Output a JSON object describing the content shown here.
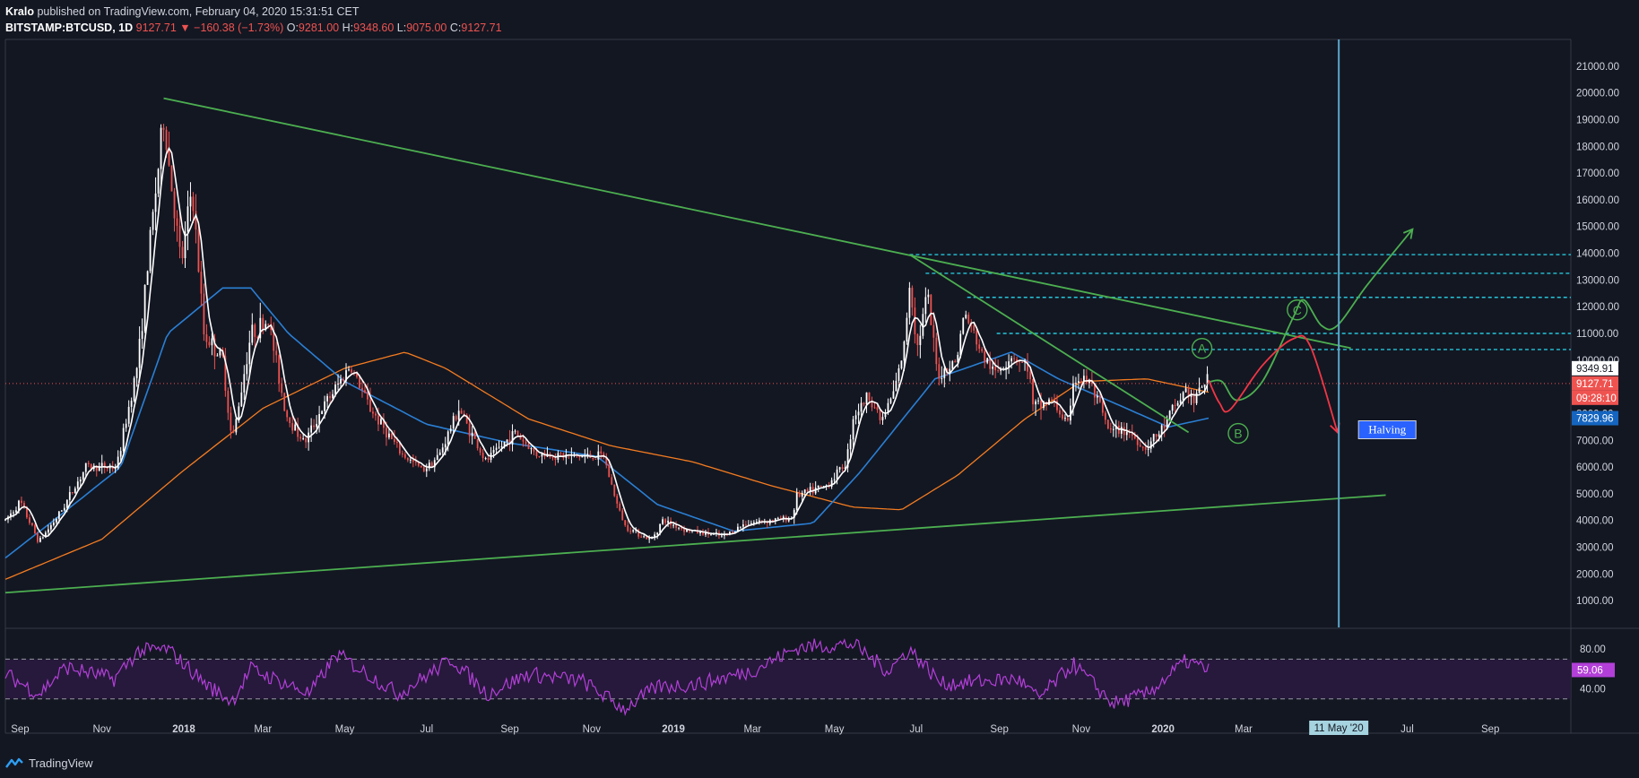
{
  "header": {
    "author": "Kralo",
    "published": "published on TradingView.com, February 04, 2020 15:31:51 CET",
    "symbol": "BITSTAMP:BTCUSD, 1D",
    "last": "9127.71",
    "change_arrow": "▼",
    "change": "−160.38 (−1.73%)",
    "o_label": "O:",
    "o": "9281.00",
    "h_label": "H:",
    "h": "9348.60",
    "l_label": "L:",
    "l": "9075.00",
    "c_label": "C:",
    "c": "9127.71"
  },
  "footer": {
    "brand": "TradingView",
    "icon": "tradingview-logo-icon"
  },
  "colors": {
    "background": "#131722",
    "candle_up": "#ffffff",
    "candle_down": "#ef5350",
    "ma_fast": "#ffffff",
    "ma_medium": "#2a7fd4",
    "ma_slow": "#f57c20",
    "trendline": "#4caf50",
    "level": "#26c6da",
    "rsi": "#b33fd8",
    "halving_line": "#5ba6c8",
    "projection_up": "#4caf50",
    "projection_down": "#f23645"
  },
  "chart_data": {
    "type": "candlestick",
    "title": "",
    "ylim": [
      0,
      22000
    ],
    "ytick_labels": [
      "1000.00",
      "2000.00",
      "3000.00",
      "4000.00",
      "5000.00",
      "6000.00",
      "7000.00",
      "8000.00",
      "9000.00",
      "10000.00",
      "11000.00",
      "12000.00",
      "13000.00",
      "14000.00",
      "15000.00",
      "16000.00",
      "17000.00",
      "18000.00",
      "19000.00",
      "20000.00",
      "21000.00"
    ],
    "xlim": [
      "2017-08-21",
      "2020-10-31"
    ],
    "xtick_labels": [
      {
        "date": "2017-09-01",
        "label": "Sep"
      },
      {
        "date": "2017-11-01",
        "label": "Nov"
      },
      {
        "date": "2018-01-01",
        "label": "2018",
        "bold": true
      },
      {
        "date": "2018-03-01",
        "label": "Mar"
      },
      {
        "date": "2018-05-01",
        "label": "May"
      },
      {
        "date": "2018-07-01",
        "label": "Jul"
      },
      {
        "date": "2018-09-01",
        "label": "Sep"
      },
      {
        "date": "2018-11-01",
        "label": "Nov"
      },
      {
        "date": "2019-01-01",
        "label": "2019",
        "bold": true
      },
      {
        "date": "2019-03-01",
        "label": "Mar"
      },
      {
        "date": "2019-05-01",
        "label": "May"
      },
      {
        "date": "2019-07-01",
        "label": "Jul"
      },
      {
        "date": "2019-09-01",
        "label": "Sep"
      },
      {
        "date": "2019-11-01",
        "label": "Nov"
      },
      {
        "date": "2020-01-01",
        "label": "2020",
        "bold": true
      },
      {
        "date": "2020-03-01",
        "label": "Mar"
      },
      {
        "date": "2020-05-01",
        "label": "May"
      },
      {
        "date": "2020-07-01",
        "label": "Jul"
      },
      {
        "date": "2020-09-01",
        "label": "Sep"
      }
    ],
    "price_anchors": [
      [
        "2017-08-21",
        4000
      ],
      [
        "2017-09-01",
        4700
      ],
      [
        "2017-09-15",
        3200
      ],
      [
        "2017-10-01",
        4300
      ],
      [
        "2017-10-20",
        6000
      ],
      [
        "2017-11-12",
        6000
      ],
      [
        "2017-11-28",
        10000
      ],
      [
        "2017-12-08",
        15000
      ],
      [
        "2017-12-17",
        19000
      ],
      [
        "2017-12-30",
        13500
      ],
      [
        "2018-01-07",
        16500
      ],
      [
        "2018-01-16",
        11000
      ],
      [
        "2018-01-30",
        10000
      ],
      [
        "2018-02-06",
        6900
      ],
      [
        "2018-02-20",
        11000
      ],
      [
        "2018-03-05",
        11500
      ],
      [
        "2018-03-18",
        8000
      ],
      [
        "2018-04-01",
        6900
      ],
      [
        "2018-04-12",
        8000
      ],
      [
        "2018-05-05",
        9800
      ],
      [
        "2018-05-20",
        8200
      ],
      [
        "2018-06-12",
        6500
      ],
      [
        "2018-06-28",
        5900
      ],
      [
        "2018-07-10",
        6400
      ],
      [
        "2018-07-25",
        8200
      ],
      [
        "2018-08-14",
        6200
      ],
      [
        "2018-09-05",
        7300
      ],
      [
        "2018-09-20",
        6500
      ],
      [
        "2018-10-15",
        6400
      ],
      [
        "2018-11-10",
        6400
      ],
      [
        "2018-11-20",
        4600
      ],
      [
        "2018-11-26",
        3800
      ],
      [
        "2018-12-15",
        3250
      ],
      [
        "2018-12-24",
        4000
      ],
      [
        "2019-01-10",
        3650
      ],
      [
        "2019-02-07",
        3400
      ],
      [
        "2019-02-24",
        3900
      ],
      [
        "2019-03-31",
        4100
      ],
      [
        "2019-04-02",
        4900
      ],
      [
        "2019-04-25",
        5300
      ],
      [
        "2019-05-10",
        6200
      ],
      [
        "2019-05-15",
        7900
      ],
      [
        "2019-05-27",
        8700
      ],
      [
        "2019-06-05",
        7700
      ],
      [
        "2019-06-15",
        8900
      ],
      [
        "2019-06-22",
        10500
      ],
      [
        "2019-06-26",
        12900
      ],
      [
        "2019-07-02",
        10500
      ],
      [
        "2019-07-09",
        12500
      ],
      [
        "2019-07-17",
        9400
      ],
      [
        "2019-07-31",
        10000
      ],
      [
        "2019-08-06",
        11800
      ],
      [
        "2019-08-20",
        10100
      ],
      [
        "2019-08-29",
        9500
      ],
      [
        "2019-09-10",
        10200
      ],
      [
        "2019-09-23",
        9700
      ],
      [
        "2019-09-26",
        8200
      ],
      [
        "2019-10-10",
        8500
      ],
      [
        "2019-10-23",
        7500
      ],
      [
        "2019-10-26",
        9300
      ],
      [
        "2019-11-07",
        9200
      ],
      [
        "2019-11-22",
        7300
      ],
      [
        "2019-12-05",
        7400
      ],
      [
        "2019-12-18",
        6700
      ],
      [
        "2019-12-30",
        7300
      ],
      [
        "2020-01-08",
        8100
      ],
      [
        "2020-01-18",
        8900
      ],
      [
        "2020-01-24",
        8450
      ],
      [
        "2020-02-02",
        9350
      ],
      [
        "2020-02-04",
        9127
      ]
    ],
    "ma_medium_anchors": [
      [
        "2017-08-21",
        2600
      ],
      [
        "2017-10-01",
        4200
      ],
      [
        "2017-11-15",
        6000
      ],
      [
        "2017-12-20",
        11000
      ],
      [
        "2018-01-30",
        12700
      ],
      [
        "2018-02-20",
        12700
      ],
      [
        "2018-03-20",
        11000
      ],
      [
        "2018-05-01",
        9200
      ],
      [
        "2018-07-01",
        7600
      ],
      [
        "2018-09-01",
        6900
      ],
      [
        "2018-11-05",
        6400
      ],
      [
        "2018-12-20",
        4600
      ],
      [
        "2019-02-15",
        3600
      ],
      [
        "2019-04-15",
        3900
      ],
      [
        "2019-05-20",
        5800
      ],
      [
        "2019-07-15",
        9300
      ],
      [
        "2019-09-10",
        10300
      ],
      [
        "2019-10-15",
        9300
      ],
      [
        "2019-11-30",
        8300
      ],
      [
        "2020-01-05",
        7500
      ],
      [
        "2020-02-04",
        7830
      ]
    ],
    "ma_slow_anchors": [
      [
        "2017-08-21",
        1800
      ],
      [
        "2017-11-01",
        3300
      ],
      [
        "2017-12-30",
        5800
      ],
      [
        "2018-03-01",
        8200
      ],
      [
        "2018-05-01",
        9700
      ],
      [
        "2018-06-15",
        10300
      ],
      [
        "2018-07-15",
        9700
      ],
      [
        "2018-09-15",
        7800
      ],
      [
        "2018-11-15",
        6800
      ],
      [
        "2019-01-15",
        6200
      ],
      [
        "2019-03-15",
        5300
      ],
      [
        "2019-05-15",
        4500
      ],
      [
        "2019-06-20",
        4400
      ],
      [
        "2019-08-01",
        5700
      ],
      [
        "2019-09-20",
        7800
      ],
      [
        "2019-11-01",
        9200
      ],
      [
        "2019-12-20",
        9300
      ],
      [
        "2020-02-04",
        8800
      ]
    ],
    "rsi": {
      "ylim": [
        10,
        100
      ],
      "tick_labels": [
        "80.00",
        "40.00"
      ],
      "band": [
        30,
        70
      ],
      "current_label": "59.06",
      "anchors": [
        [
          "2017-08-21",
          55
        ],
        [
          "2017-09-15",
          35
        ],
        [
          "2017-10-05",
          62
        ],
        [
          "2017-11-10",
          50
        ],
        [
          "2017-11-28",
          78
        ],
        [
          "2017-12-20",
          80
        ],
        [
          "2018-01-20",
          42
        ],
        [
          "2018-02-06",
          28
        ],
        [
          "2018-02-20",
          60
        ],
        [
          "2018-04-05",
          35
        ],
        [
          "2018-04-25",
          75
        ],
        [
          "2018-06-10",
          35
        ],
        [
          "2018-07-20",
          70
        ],
        [
          "2018-08-15",
          35
        ],
        [
          "2018-09-15",
          55
        ],
        [
          "2018-10-25",
          48
        ],
        [
          "2018-11-25",
          20
        ],
        [
          "2018-12-20",
          42
        ],
        [
          "2019-01-20",
          45
        ],
        [
          "2019-02-28",
          58
        ],
        [
          "2019-04-05",
          82
        ],
        [
          "2019-05-15",
          85
        ],
        [
          "2019-06-10",
          58
        ],
        [
          "2019-06-26",
          80
        ],
        [
          "2019-07-20",
          45
        ],
        [
          "2019-09-15",
          50
        ],
        [
          "2019-09-30",
          30
        ],
        [
          "2019-10-26",
          65
        ],
        [
          "2019-11-25",
          25
        ],
        [
          "2019-12-20",
          35
        ],
        [
          "2020-01-18",
          68
        ],
        [
          "2020-02-04",
          59
        ]
      ]
    },
    "current_price_label": "9127.71",
    "countdown_label": "09:28:10",
    "ma_medium_label": "7829.96",
    "hidden_label": "9349.91",
    "trendlines": [
      {
        "name": "upper-resistance",
        "from": [
          "2017-12-17",
          19800
        ],
        "to": [
          "2020-05-20",
          10450
        ]
      },
      {
        "name": "lower-support",
        "from": [
          "2017-08-21",
          1300
        ],
        "to": [
          "2020-06-15",
          4950
        ]
      },
      {
        "name": "short-resistance",
        "from": [
          "2019-06-26",
          13950
        ],
        "to": [
          "2020-01-20",
          7300
        ]
      }
    ],
    "levels": [
      {
        "price": 13950,
        "from": "2019-06-26"
      },
      {
        "price": 13250,
        "from": "2019-07-08"
      },
      {
        "price": 12350,
        "from": "2019-08-08"
      },
      {
        "price": 11000,
        "from": "2019-08-30"
      },
      {
        "price": 10400,
        "from": "2019-10-26"
      }
    ],
    "current_level": 9127.71,
    "projections": {
      "green": [
        [
          "2020-02-04",
          9180
        ],
        [
          "2020-02-14",
          9200
        ],
        [
          "2020-02-25",
          8500
        ],
        [
          "2020-03-15",
          9200
        ],
        [
          "2020-04-07",
          11600
        ],
        [
          "2020-04-15",
          12250
        ],
        [
          "2020-04-28",
          11300
        ],
        [
          "2020-05-10",
          11300
        ],
        [
          "2020-06-01",
          12800
        ],
        [
          "2020-07-05",
          14900
        ]
      ],
      "red": [
        [
          "2020-02-04",
          9250
        ],
        [
          "2020-02-12",
          8400
        ],
        [
          "2020-02-20",
          8150
        ],
        [
          "2020-03-15",
          9800
        ],
        [
          "2020-04-07",
          10800
        ],
        [
          "2020-04-20",
          10500
        ],
        [
          "2020-05-10",
          7300
        ]
      ]
    },
    "waves": [
      {
        "label": "A",
        "date": "2020-01-30",
        "price": 10440
      },
      {
        "label": "B",
        "date": "2020-02-26",
        "price": 7260
      },
      {
        "label": "C",
        "date": "2020-04-10",
        "price": 11880
      }
    ],
    "halving": {
      "date": "2020-05-11",
      "label": "Halving",
      "axis_label": "11 May '20"
    }
  }
}
